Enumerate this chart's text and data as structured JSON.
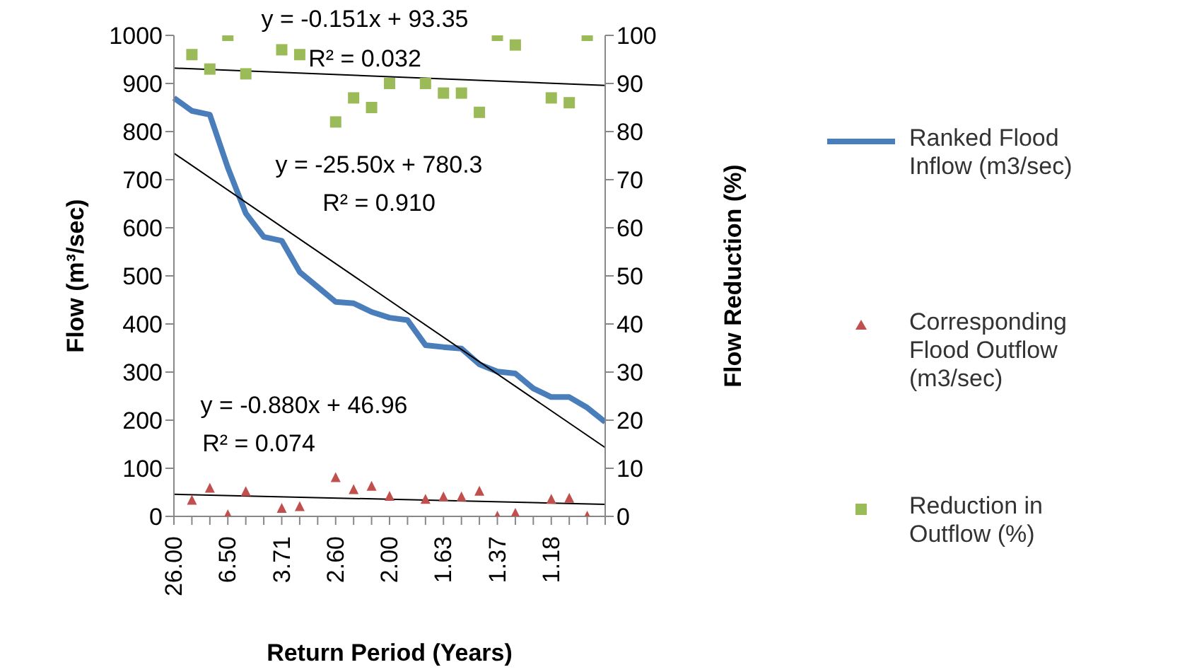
{
  "chart_data": {
    "type": "line",
    "xlabel": "Return Period (Years)",
    "ylabel": "Flow (m³/sec)",
    "y2label": "Flow Reduction (%)",
    "categories": [
      "26.00",
      null,
      null,
      "6.50",
      null,
      null,
      "3.71",
      null,
      null,
      "2.60",
      null,
      null,
      "2.00",
      null,
      null,
      "1.63",
      null,
      null,
      "1.37",
      null,
      null,
      "1.18",
      null,
      null,
      null
    ],
    "ylim": [
      0,
      1000
    ],
    "yticks": [
      0,
      100,
      200,
      300,
      400,
      500,
      600,
      700,
      800,
      900,
      1000
    ],
    "y2lim": [
      0,
      100
    ],
    "y2ticks": [
      0,
      10,
      20,
      30,
      40,
      50,
      60,
      70,
      80,
      90,
      100
    ],
    "grid": false,
    "legend": "right",
    "series": [
      {
        "name": "Ranked Flood Inflow (m3/sec)",
        "marker": "none",
        "color": "#4a7ebb",
        "values": [
          870,
          843,
          835,
          725,
          630,
          581,
          573,
          508,
          477,
          446,
          443,
          425,
          413,
          408,
          356,
          352,
          349,
          316,
          301,
          297,
          266,
          248,
          248,
          226,
          196
        ]
      },
      {
        "name": "Corresponding Flood Outflow (m3/sec)",
        "type": "scatter",
        "marker": "triangle",
        "color": "#c0504d",
        "values": [
          null,
          33,
          58,
          3,
          51,
          null,
          16,
          20,
          null,
          80,
          55,
          62,
          41,
          null,
          35,
          40,
          40,
          52,
          0,
          6,
          null,
          35,
          37,
          0,
          null
        ]
      },
      {
        "name": "Reduction in Outflow (%)",
        "type": "scatter",
        "marker": "square",
        "axis": "y2",
        "color": "#9bbb59",
        "values": [
          null,
          96,
          93,
          100,
          92,
          null,
          97,
          96,
          null,
          82,
          87,
          85,
          90,
          null,
          90,
          88,
          88,
          84,
          100,
          98,
          null,
          87,
          86,
          100,
          null
        ]
      },
      {
        "type": "line",
        "marker": "none",
        "color": "#000000",
        "values": [
          755,
          null,
          null,
          null,
          null,
          null,
          null,
          null,
          null,
          null,
          null,
          null,
          null,
          null,
          null,
          null,
          null,
          null,
          null,
          null,
          null,
          null,
          null,
          null,
          143
        ]
      },
      {
        "type": "line",
        "marker": "none",
        "color": "#000000",
        "values": [
          46,
          null,
          null,
          null,
          null,
          null,
          null,
          null,
          null,
          null,
          null,
          null,
          null,
          null,
          null,
          null,
          null,
          null,
          null,
          null,
          null,
          null,
          null,
          null,
          25
        ]
      },
      {
        "type": "line",
        "marker": "none",
        "axis": "y2",
        "color": "#000000",
        "values": [
          93.2,
          null,
          null,
          null,
          null,
          null,
          null,
          null,
          null,
          null,
          null,
          null,
          null,
          null,
          null,
          null,
          null,
          null,
          null,
          null,
          null,
          null,
          null,
          null,
          89.6
        ]
      }
    ],
    "annotations": [
      "y = -0.151x + 93.35",
      "R² = 0.032",
      "y = -25.50x + 780.3",
      "R² = 0.910",
      "y = -0.880x + 46.96",
      "R² = 0.074"
    ]
  }
}
